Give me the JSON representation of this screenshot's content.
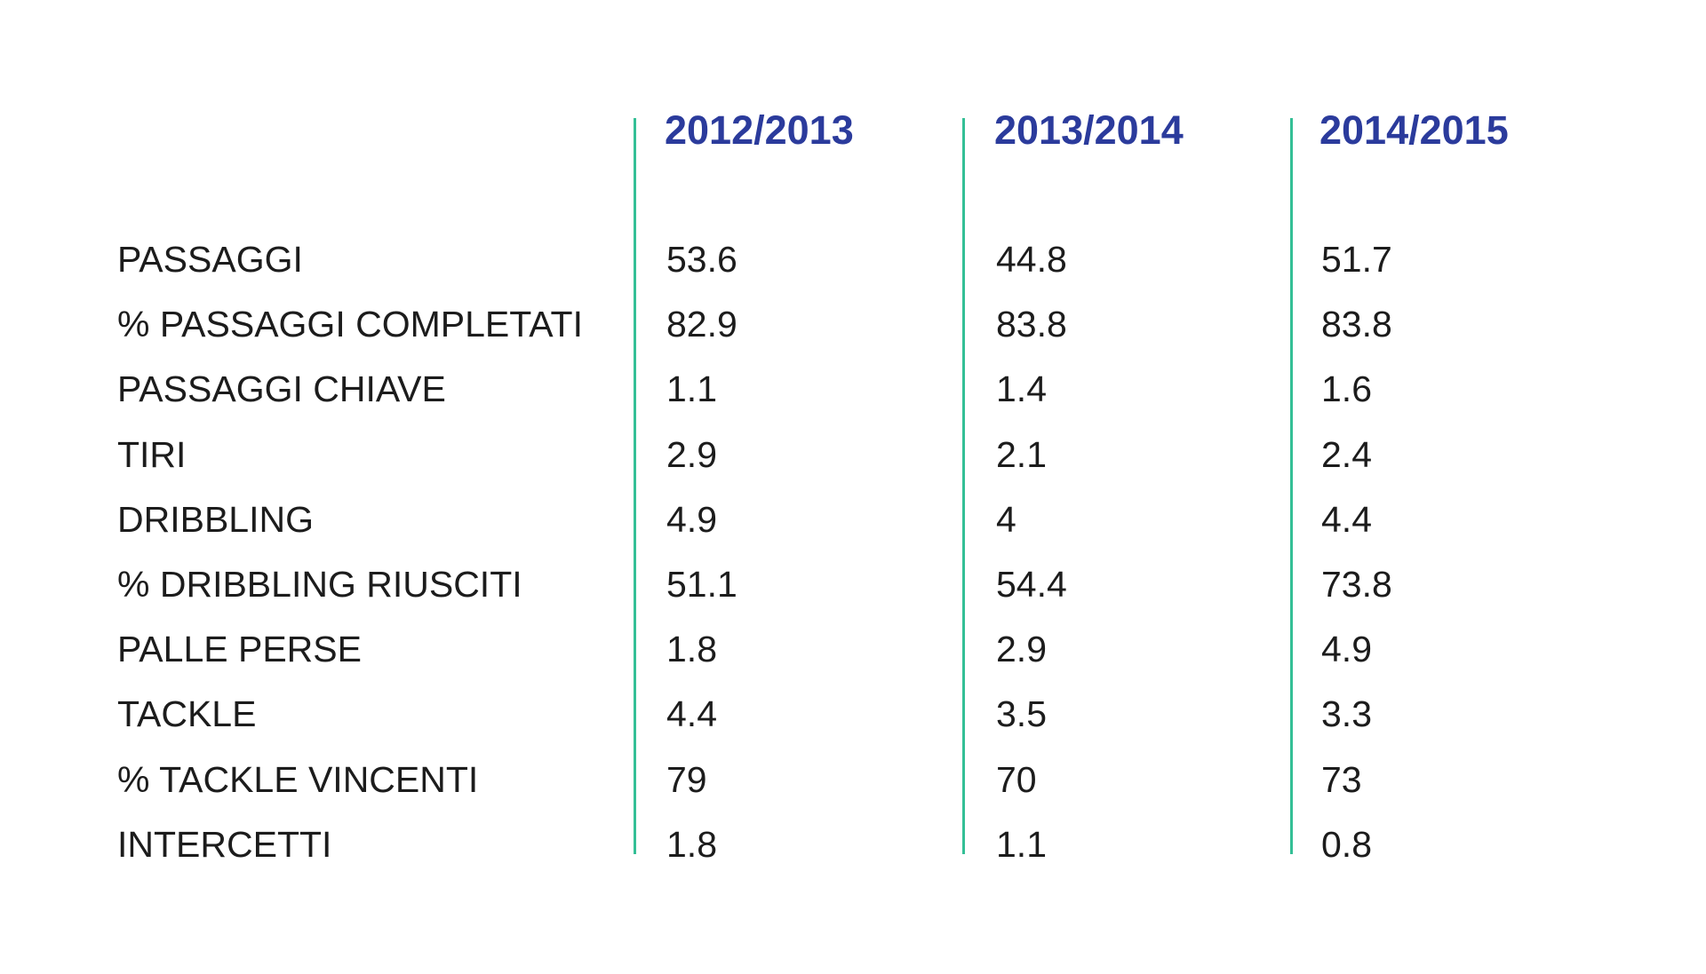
{
  "page": {
    "background_color": "#ffffff"
  },
  "colors": {
    "header_text": "#2b3b9c",
    "divider_green": "#34bf96",
    "body_text": "#1c1c1c"
  },
  "table": {
    "columns": [
      "2012/2013",
      "2013/2014",
      "2014/2015"
    ],
    "rows": [
      {
        "label": "PASSAGGI",
        "values": [
          "53.6",
          "44.8",
          "51.7"
        ]
      },
      {
        "label": "% PASSAGGI COMPLETATI",
        "values": [
          "82.9",
          "83.8",
          "83.8"
        ]
      },
      {
        "label": "PASSAGGI CHIAVE",
        "values": [
          "1.1",
          "1.4",
          "1.6"
        ]
      },
      {
        "label": "TIRI",
        "values": [
          "2.9",
          "2.1",
          "2.4"
        ]
      },
      {
        "label": "DRIBBLING",
        "values": [
          "4.9",
          "4",
          "4.4"
        ]
      },
      {
        "label": "% DRIBBLING RIUSCITI",
        "values": [
          "51.1",
          "54.4",
          "73.8"
        ]
      },
      {
        "label": "PALLE PERSE",
        "values": [
          "1.8",
          "2.9",
          "4.9"
        ]
      },
      {
        "label": "TACKLE",
        "values": [
          "4.4",
          "3.5",
          "3.3"
        ]
      },
      {
        "label": "% TACKLE VINCENTI",
        "values": [
          "79",
          "70",
          "73"
        ]
      },
      {
        "label": "INTERCETTI",
        "values": [
          "1.8",
          "1.1",
          "0.8"
        ]
      }
    ]
  },
  "chart_data": {
    "type": "table",
    "title": "",
    "categories": [
      "PASSAGGI",
      "% PASSAGGI COMPLETATI",
      "PASSAGGI CHIAVE",
      "TIRI",
      "DRIBBLING",
      "% DRIBBLING RIUSCITI",
      "PALLE PERSE",
      "TACKLE",
      "% TACKLE VINCENTI",
      "INTERCETTI"
    ],
    "series": [
      {
        "name": "2012/2013",
        "values": [
          53.6,
          82.9,
          1.1,
          2.9,
          4.9,
          51.1,
          1.8,
          4.4,
          79,
          1.8
        ]
      },
      {
        "name": "2013/2014",
        "values": [
          44.8,
          83.8,
          1.4,
          2.1,
          4.0,
          54.4,
          2.9,
          3.5,
          70,
          1.1
        ]
      },
      {
        "name": "2014/2015",
        "values": [
          51.7,
          83.8,
          1.6,
          2.4,
          4.4,
          73.8,
          4.9,
          3.3,
          73,
          0.8
        ]
      }
    ],
    "legend_position": "top",
    "grid": false
  }
}
